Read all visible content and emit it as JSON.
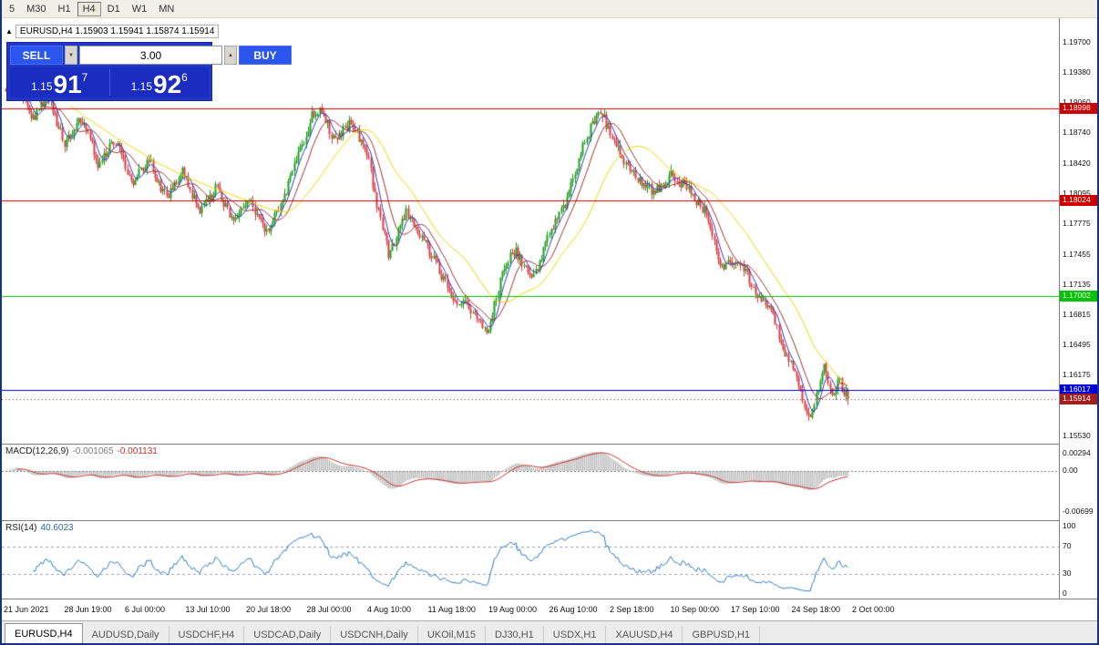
{
  "toolbar": {
    "timeframes": [
      {
        "label": "5",
        "active": false
      },
      {
        "label": "M30",
        "active": false
      },
      {
        "label": "H1",
        "active": false
      },
      {
        "label": "H4",
        "active": true
      },
      {
        "label": "D1",
        "active": false
      },
      {
        "label": "W1",
        "active": false
      },
      {
        "label": "MN",
        "active": false
      }
    ]
  },
  "chart_header": {
    "expand_icon": "▲",
    "symbol_tf": "EURUSD,H4",
    "ohlc": "1.15903 1.15941 1.15874 1.15914",
    "ohlc_values": [
      "1.15903",
      "1.15941",
      "1.15874",
      "1.15914"
    ]
  },
  "trade_panel": {
    "sell_label": "SELL",
    "buy_label": "BUY",
    "volume": "3.00",
    "spin_down_glyph": "▼",
    "spin_up_glyph": "▲",
    "sell_price": {
      "prefix": "1.15",
      "big": "91",
      "sup": "7"
    },
    "buy_price": {
      "prefix": "1.15",
      "big": "92",
      "sup": "6"
    }
  },
  "colors": {
    "candle_up": "#1aa11a",
    "candle_down": "#dc3c3c",
    "macd_hist": "#c0c0c0",
    "macd_signal": "#c03030",
    "rsi_line": "#2e7bbf",
    "panel_blue": "#2036c8"
  },
  "tabs": [
    {
      "label": "EURUSD,H4",
      "active": true
    },
    {
      "label": "AUDUSD,Daily",
      "active": false
    },
    {
      "label": "USDCHF,H4",
      "active": false
    },
    {
      "label": "USDCAD,Daily",
      "active": false
    },
    {
      "label": "USDCNH,Daily",
      "active": false
    },
    {
      "label": "UKOil,M15",
      "active": false
    },
    {
      "label": "DJ30,H1",
      "active": false
    },
    {
      "label": "USDX,H1",
      "active": false
    },
    {
      "label": "XAUUSD,H4",
      "active": false
    },
    {
      "label": "GBPUSD,H1",
      "active": false
    }
  ],
  "chart_data": {
    "type": "candlestick",
    "symbol": "EURUSD",
    "timeframe": "H4",
    "num_candles": 430,
    "price_range": [
      1.15443,
      1.19932
    ],
    "y_axis_ticks": [
      "1.19700",
      "1.19380",
      "1.19060",
      "1.18740",
      "1.18420",
      "1.18095",
      "1.17775",
      "1.17455",
      "1.17135",
      "1.16815",
      "1.16495",
      "1.16175",
      "1.15530"
    ],
    "x_axis_labels": [
      "21 Jun 2021",
      "28 Jun 19:00",
      "6 Jul 00:00",
      "13 Jul 10:00",
      "20 Jul 18:00",
      "28 Jul 00:00",
      "4 Aug 10:00",
      "11 Aug 18:00",
      "19 Aug 00:00",
      "26 Aug 10:00",
      "2 Sep 18:00",
      "10 Sep 00:00",
      "17 Sep 10:00",
      "24 Sep 18:00",
      "2 Oct 00:00"
    ],
    "hlines": [
      {
        "price": 1.18998,
        "label": "1.18998",
        "color": "#cc0000"
      },
      {
        "price": 1.18024,
        "label": "1.18024",
        "color": "#cc0000"
      },
      {
        "price": 1.17002,
        "label": "1.17002",
        "color": "#00c400"
      },
      {
        "price": 1.16017,
        "label": "1.16017",
        "color": "#0000d8"
      }
    ],
    "current_price": {
      "value": 1.15914,
      "label": "1.15914",
      "color": "#a02020"
    },
    "moving_averages": [
      {
        "period": 6,
        "color": "#3333cc"
      },
      {
        "period": 13,
        "color": "#993333"
      },
      {
        "period": 34,
        "color": "#edd500"
      }
    ],
    "price_anchors": [
      [
        0,
        1.192
      ],
      [
        0.012,
        1.1945
      ],
      [
        0.03,
        1.1885
      ],
      [
        0.05,
        1.1915
      ],
      [
        0.07,
        1.186
      ],
      [
        0.09,
        1.189
      ],
      [
        0.11,
        1.184
      ],
      [
        0.13,
        1.1865
      ],
      [
        0.15,
        1.182
      ],
      [
        0.17,
        1.1845
      ],
      [
        0.19,
        1.1805
      ],
      [
        0.21,
        1.1835
      ],
      [
        0.23,
        1.179
      ],
      [
        0.25,
        1.1815
      ],
      [
        0.27,
        1.178
      ],
      [
        0.29,
        1.18
      ],
      [
        0.31,
        1.177
      ],
      [
        0.33,
        1.1805
      ],
      [
        0.35,
        1.1855
      ],
      [
        0.365,
        1.1895
      ],
      [
        0.375,
        1.19
      ],
      [
        0.39,
        1.1865
      ],
      [
        0.41,
        1.1885
      ],
      [
        0.43,
        1.185
      ],
      [
        0.44,
        1.18
      ],
      [
        0.455,
        1.1745
      ],
      [
        0.475,
        1.179
      ],
      [
        0.5,
        1.1755
      ],
      [
        0.53,
        1.17
      ],
      [
        0.555,
        1.1685
      ],
      [
        0.572,
        1.1658
      ],
      [
        0.59,
        1.173
      ],
      [
        0.605,
        1.175
      ],
      [
        0.625,
        1.1715
      ],
      [
        0.645,
        1.1765
      ],
      [
        0.665,
        1.18
      ],
      [
        0.685,
        1.186
      ],
      [
        0.705,
        1.19
      ],
      [
        0.715,
        1.188
      ],
      [
        0.73,
        1.185
      ],
      [
        0.75,
        1.1825
      ],
      [
        0.77,
        1.181
      ],
      [
        0.79,
        1.183
      ],
      [
        0.81,
        1.1815
      ],
      [
        0.83,
        1.179
      ],
      [
        0.85,
        1.173
      ],
      [
        0.865,
        1.174
      ],
      [
        0.88,
        1.1725
      ],
      [
        0.895,
        1.17
      ],
      [
        0.91,
        1.1685
      ],
      [
        0.925,
        1.164
      ],
      [
        0.94,
        1.1615
      ],
      [
        0.953,
        1.157
      ],
      [
        0.962,
        1.1595
      ],
      [
        0.972,
        1.163
      ],
      [
        0.982,
        1.1595
      ],
      [
        0.99,
        1.161
      ],
      [
        1.0,
        1.15914
      ]
    ],
    "macd": {
      "label": "MACD(12,26,9)",
      "value1": "-0.001065",
      "value2": "-0.001131",
      "axis_ticks": [
        "0.00294",
        "0.00",
        "-0.00699"
      ],
      "params": [
        12,
        26,
        9
      ]
    },
    "rsi": {
      "label": "RSI(14)",
      "value": "40.6023",
      "axis_ticks": [
        "100",
        "70",
        "30",
        "0"
      ],
      "levels": [
        70,
        30
      ],
      "period": 14
    }
  }
}
